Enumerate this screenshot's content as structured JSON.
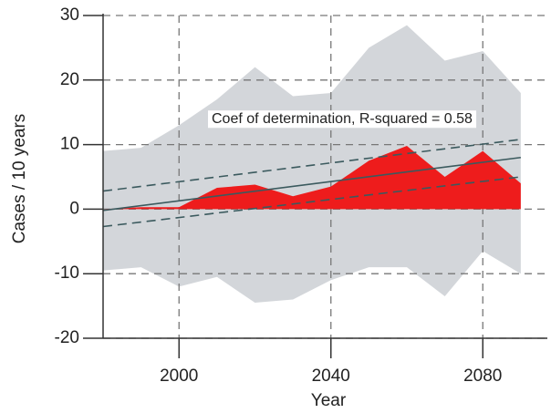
{
  "chart_data": {
    "type": "area",
    "xlabel": "Year",
    "ylabel": "Cases / 10 years",
    "annotation": "Coef of determination, R-squared = 0.58",
    "x": [
      1980,
      1990,
      2000,
      2010,
      2020,
      2030,
      2040,
      2050,
      2060,
      2070,
      2080,
      2090
    ],
    "values": [
      0,
      0.3,
      0.3,
      3.3,
      3.8,
      2,
      3.5,
      7.5,
      9.8,
      5,
      9,
      4
    ],
    "color": "#ee1c1c",
    "band_upper": [
      9,
      9.5,
      13,
      17,
      22,
      17.5,
      18,
      25,
      28.5,
      23,
      24.5,
      18
    ],
    "band_lower": [
      -9.5,
      -9,
      -12,
      -10.5,
      -14.5,
      -14,
      -11,
      -9,
      -9,
      -13.5,
      -6.5,
      -10
    ],
    "band_color": "#d3d6da",
    "fit_x": [
      1980,
      2090
    ],
    "fit_values": [
      -0.2,
      8
    ],
    "fit_upper": [
      2.8,
      10.8
    ],
    "fit_lower": [
      -2.7,
      5
    ],
    "fit_color": "#3b5a5e",
    "xlim": [
      1980,
      2097
    ],
    "ylim": [
      -20,
      30
    ],
    "xticks": [
      2000,
      2040,
      2080
    ],
    "yticks": [
      -20,
      -10,
      0,
      10,
      20,
      30
    ],
    "grid": true
  }
}
